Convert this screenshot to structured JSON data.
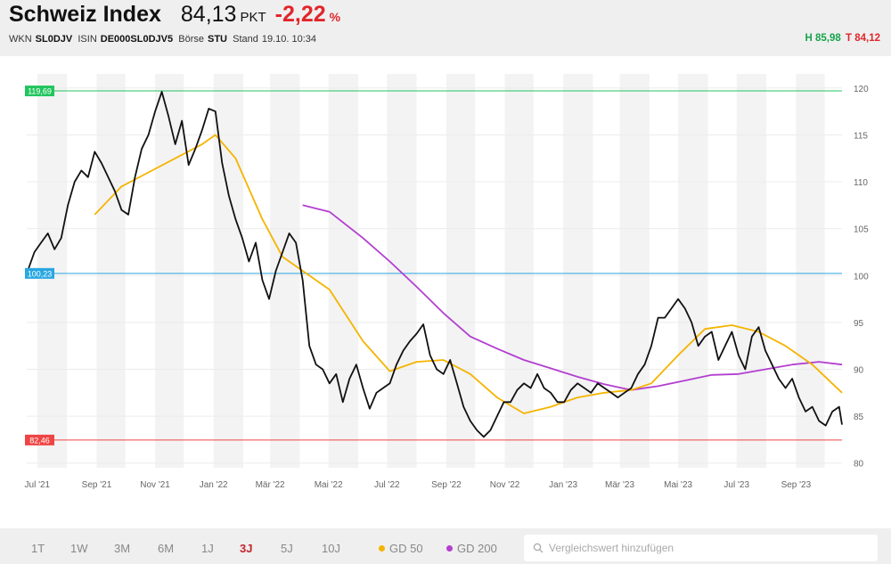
{
  "header": {
    "name": "Schweiz Index",
    "value": "84,13",
    "unit": "PKT",
    "change": "-2,22",
    "change_unit": "%",
    "wkn_label": "WKN",
    "wkn": "SL0DJV",
    "isin_label": "ISIN",
    "isin": "DE000SL0DJV5",
    "exchange_label": "Börse",
    "exchange": "STU",
    "time_label": "Stand",
    "time": "19.10. 10:34",
    "high": "H 85,98",
    "low": "T 84,12"
  },
  "colors": {
    "price": "#111111",
    "gd50": "#f5b400",
    "gd200": "#b23fcf",
    "high_line": "#22c55e",
    "avg_line": "#29a7e1",
    "low_line": "#ef4444",
    "band": "#f3f3f3",
    "down": "#e0262b",
    "up": "#16a34a"
  },
  "footer": {
    "ranges": [
      "1T",
      "1W",
      "3M",
      "6M",
      "1J",
      "3J",
      "5J",
      "10J"
    ],
    "active_range": "3J",
    "legend_gd50": "GD 50",
    "legend_gd200": "GD 200",
    "compare_placeholder": "Vergleichswert hinzufügen",
    "search_icon": "search-icon"
  },
  "chart_data": {
    "type": "line",
    "x_ticks": [
      "Jul '21",
      "Sep '21",
      "Nov '21",
      "Jan '22",
      "Mär '22",
      "Mai '22",
      "Jul '22",
      "Sep '22",
      "Nov '22",
      "Jan '23",
      "Mär '23",
      "Mai '23",
      "Jul '23",
      "Sep '23"
    ],
    "x_range": [
      "2021-06-20",
      "2023-10-19"
    ],
    "y_ticks": [
      80,
      85,
      90,
      95,
      100,
      105,
      110,
      115,
      120
    ],
    "ylim": [
      79.5,
      121.5
    ],
    "grid": "alternating monthly bands",
    "reference_lines": [
      {
        "label": "119,69",
        "value": 119.69,
        "color_key": "high_line"
      },
      {
        "label": "100,23",
        "value": 100.23,
        "color_key": "avg_line"
      },
      {
        "label": "82,46",
        "value": 82.46,
        "color_key": "low_line"
      }
    ],
    "series": [
      {
        "key": "price",
        "x": [
          "2021-06-21",
          "2021-06-28",
          "2021-07-05",
          "2021-07-12",
          "2021-07-19",
          "2021-07-26",
          "2021-08-02",
          "2021-08-09",
          "2021-08-16",
          "2021-08-23",
          "2021-08-30",
          "2021-09-06",
          "2021-09-13",
          "2021-09-20",
          "2021-09-27",
          "2021-10-04",
          "2021-10-11",
          "2021-10-18",
          "2021-10-25",
          "2021-11-01",
          "2021-11-08",
          "2021-11-15",
          "2021-11-22",
          "2021-11-29",
          "2021-12-06",
          "2021-12-13",
          "2021-12-20",
          "2021-12-27",
          "2022-01-03",
          "2022-01-10",
          "2022-01-17",
          "2022-01-24",
          "2022-01-31",
          "2022-02-07",
          "2022-02-14",
          "2022-02-21",
          "2022-02-28",
          "2022-03-07",
          "2022-03-14",
          "2022-03-21",
          "2022-03-28",
          "2022-04-04",
          "2022-04-11",
          "2022-04-18",
          "2022-04-25",
          "2022-05-02",
          "2022-05-09",
          "2022-05-16",
          "2022-05-23",
          "2022-05-30",
          "2022-06-06",
          "2022-06-13",
          "2022-06-20",
          "2022-06-27",
          "2022-07-04",
          "2022-07-11",
          "2022-07-18",
          "2022-07-25",
          "2022-08-01",
          "2022-08-08",
          "2022-08-15",
          "2022-08-22",
          "2022-08-29",
          "2022-09-05",
          "2022-09-12",
          "2022-09-19",
          "2022-09-26",
          "2022-10-03",
          "2022-10-10",
          "2022-10-17",
          "2022-10-24",
          "2022-10-31",
          "2022-11-07",
          "2022-11-14",
          "2022-11-21",
          "2022-11-28",
          "2022-12-05",
          "2022-12-12",
          "2022-12-19",
          "2022-12-26",
          "2023-01-02",
          "2023-01-09",
          "2023-01-16",
          "2023-01-23",
          "2023-01-30",
          "2023-02-06",
          "2023-02-13",
          "2023-02-20",
          "2023-02-27",
          "2023-03-06",
          "2023-03-13",
          "2023-03-20",
          "2023-03-27",
          "2023-04-03",
          "2023-04-10",
          "2023-04-17",
          "2023-04-24",
          "2023-05-01",
          "2023-05-08",
          "2023-05-15",
          "2023-05-22",
          "2023-05-29",
          "2023-06-05",
          "2023-06-12",
          "2023-06-19",
          "2023-06-26",
          "2023-07-03",
          "2023-07-10",
          "2023-07-17",
          "2023-07-24",
          "2023-07-31",
          "2023-08-07",
          "2023-08-14",
          "2023-08-21",
          "2023-08-28",
          "2023-09-04",
          "2023-09-11",
          "2023-09-18",
          "2023-09-25",
          "2023-10-02",
          "2023-10-09",
          "2023-10-16",
          "2023-10-19"
        ],
        "values": [
          100.5,
          102.5,
          103.5,
          104.5,
          102.8,
          104.0,
          107.5,
          110.0,
          111.2,
          110.5,
          113.2,
          112.0,
          110.5,
          109.0,
          107.0,
          106.5,
          110.5,
          113.5,
          115.0,
          117.5,
          119.6,
          117.0,
          114.0,
          116.5,
          111.8,
          113.5,
          115.5,
          117.8,
          117.5,
          112.0,
          108.5,
          106.0,
          104.0,
          101.5,
          103.5,
          99.5,
          97.5,
          100.5,
          102.5,
          104.5,
          103.5,
          99.5,
          92.5,
          90.5,
          90.0,
          88.5,
          89.5,
          86.5,
          89.0,
          90.5,
          88.0,
          85.8,
          87.5,
          88.0,
          88.5,
          90.5,
          92.0,
          93.0,
          93.8,
          94.8,
          91.5,
          90.0,
          89.5,
          91.0,
          88.5,
          86.0,
          84.5,
          83.5,
          82.8,
          83.5,
          85.0,
          86.5,
          86.5,
          87.8,
          88.5,
          88.0,
          89.5,
          88.0,
          87.5,
          86.5,
          86.5,
          87.8,
          88.5,
          88.0,
          87.5,
          88.5,
          88.0,
          87.5,
          87.0,
          87.5,
          88.0,
          89.5,
          90.5,
          92.5,
          95.5,
          95.5,
          96.5,
          97.5,
          96.5,
          95.0,
          92.5,
          93.5,
          94.0,
          91.0,
          92.5,
          94.0,
          91.5,
          90.0,
          93.5,
          94.5,
          92.0,
          90.5,
          89.0,
          88.0,
          89.0,
          87.0,
          85.5,
          86.0,
          84.5,
          84.0,
          85.5,
          86.0,
          84.1
        ]
      },
      {
        "key": "gd50",
        "name": "GD 50",
        "x": [
          "2021-08-30",
          "2021-09-27",
          "2021-10-25",
          "2021-11-22",
          "2021-12-20",
          "2022-01-03",
          "2022-01-24",
          "2022-02-21",
          "2022-03-14",
          "2022-04-04",
          "2022-05-02",
          "2022-06-06",
          "2022-07-04",
          "2022-08-01",
          "2022-08-29",
          "2022-09-26",
          "2022-10-24",
          "2022-11-21",
          "2022-12-19",
          "2023-01-16",
          "2023-02-13",
          "2023-03-13",
          "2023-04-03",
          "2023-05-01",
          "2023-05-29",
          "2023-06-26",
          "2023-07-24",
          "2023-08-21",
          "2023-09-18",
          "2023-10-19"
        ],
        "values": [
          106.5,
          109.5,
          111.0,
          112.5,
          114.0,
          115.0,
          112.5,
          106.0,
          102.0,
          100.5,
          98.5,
          93.0,
          89.8,
          90.8,
          91.0,
          89.5,
          87.0,
          85.3,
          86.0,
          87.0,
          87.5,
          87.8,
          88.5,
          91.5,
          94.3,
          94.7,
          94.0,
          92.5,
          90.5,
          87.5
        ]
      },
      {
        "key": "gd200",
        "name": "GD 200",
        "x": [
          "2022-04-04",
          "2022-05-02",
          "2022-06-06",
          "2022-07-04",
          "2022-08-01",
          "2022-08-29",
          "2022-09-26",
          "2022-10-24",
          "2022-11-21",
          "2022-12-19",
          "2023-01-16",
          "2023-02-13",
          "2023-03-13",
          "2023-04-10",
          "2023-05-08",
          "2023-06-05",
          "2023-07-03",
          "2023-07-31",
          "2023-08-28",
          "2023-09-25",
          "2023-10-19"
        ],
        "values": [
          107.5,
          106.8,
          104.0,
          101.5,
          98.8,
          96.0,
          93.5,
          92.2,
          91.0,
          90.1,
          89.2,
          88.4,
          87.8,
          88.2,
          88.8,
          89.4,
          89.5,
          90.0,
          90.5,
          90.8,
          90.5
        ]
      }
    ]
  }
}
